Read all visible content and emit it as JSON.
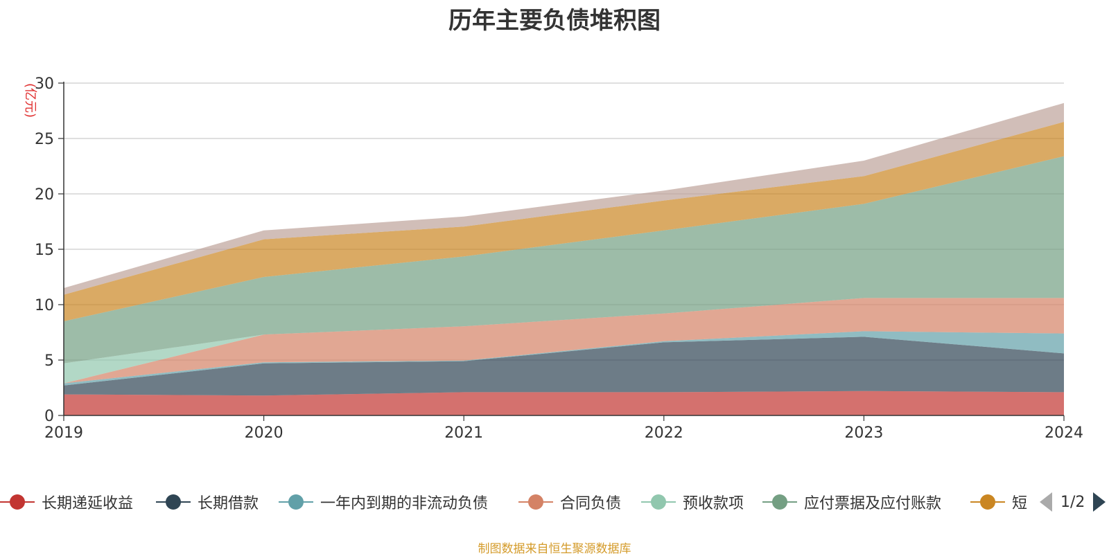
{
  "chart_data": {
    "type": "area",
    "stacked": true,
    "title": "历年主要负债堆积图",
    "ylabel": "亿元",
    "x": [
      "2019",
      "2020",
      "2021",
      "2022",
      "2023",
      "2024"
    ],
    "ylim": [
      0,
      30
    ],
    "yticks": [
      0,
      5,
      10,
      15,
      20,
      25,
      30
    ],
    "grid": true,
    "series": [
      {
        "name": "长期递延收益",
        "color": "#c23531",
        "values": [
          1.9,
          1.8,
          2.1,
          2.1,
          2.2,
          2.1
        ]
      },
      {
        "name": "长期借款",
        "color": "#2f4554",
        "values": [
          0.8,
          2.9,
          2.8,
          4.5,
          4.9,
          3.5
        ]
      },
      {
        "name": "一年内到期的非流动负债",
        "color": "#61a0a8",
        "values": [
          0.2,
          0.1,
          0.05,
          0.1,
          0.5,
          1.8
        ]
      },
      {
        "name": "合同负债",
        "color": "#d48265",
        "values": [
          0.0,
          2.5,
          3.1,
          2.5,
          3.0,
          3.2
        ]
      },
      {
        "name": "预收款项",
        "color": "#91c7ae",
        "values": [
          1.8,
          0.0,
          0.0,
          0.0,
          0.0,
          0.0
        ]
      },
      {
        "name": "应付票据及应付账款",
        "color": "#749f83",
        "values": [
          3.8,
          5.2,
          6.3,
          7.5,
          8.5,
          12.8
        ]
      },
      {
        "name": "短期借款",
        "color": "#ca8622",
        "values": [
          2.4,
          3.4,
          2.7,
          2.7,
          2.5,
          3.1
        ]
      },
      {
        "name": "",
        "color": "#bda29a",
        "values": [
          0.6,
          0.8,
          0.9,
          0.9,
          1.4,
          1.7
        ]
      }
    ]
  },
  "legend": {
    "items": [
      "长期递延收益",
      "长期借款",
      "一年内到期的非流动负债",
      "合同负债",
      "预收款项",
      "应付票据及应付账款",
      "短"
    ],
    "page": "1/2"
  },
  "source_note": "制图数据来自恒生聚源数据库"
}
